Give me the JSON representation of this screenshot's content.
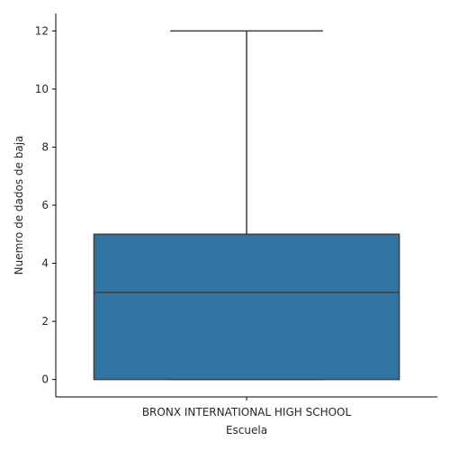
{
  "chart_data": {
    "type": "box",
    "xlabel": "Escuela",
    "ylabel": "Nuemro de dados de baja",
    "categories": [
      "BRONX INTERNATIONAL HIGH SCHOOL"
    ],
    "boxes": [
      {
        "category": "BRONX INTERNATIONAL HIGH SCHOOL",
        "min": 0,
        "q1": 0,
        "median": 3,
        "q3": 5,
        "max": 12
      }
    ],
    "yticks": [
      0,
      2,
      4,
      6,
      8,
      10,
      12
    ],
    "ylim": [
      -0.6,
      12.6
    ],
    "grid": false,
    "colors": {
      "box": "#3274a1",
      "line": "#3f3f3f",
      "axis": "#000000"
    }
  }
}
